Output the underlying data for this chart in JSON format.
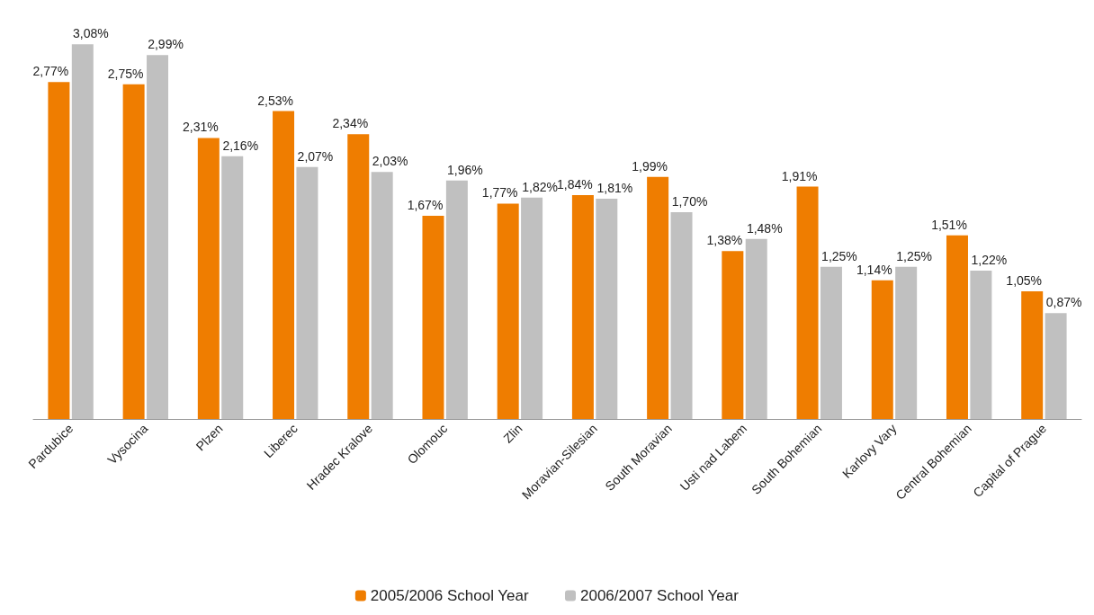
{
  "chart_data": {
    "type": "bar",
    "categories": [
      "Pardubice",
      "Vysocina",
      "Plzen",
      "Liberec",
      "Hradec Kralove",
      "Olomouc",
      "Zlin",
      "Moravian-Silesian",
      "South Moravian",
      "Usti nad Labem",
      "South Bohemian",
      "Karlovy Vary",
      "Central Bohemian",
      "Capital of Prague"
    ],
    "series": [
      {
        "name": "2005/2006 School Year",
        "color": "#ef7d00",
        "values": [
          2.77,
          2.75,
          2.31,
          2.53,
          2.34,
          1.67,
          1.77,
          1.84,
          1.99,
          1.38,
          1.91,
          1.14,
          1.51,
          1.05
        ],
        "value_labels": [
          "2,77%",
          "2,75%",
          "2,31%",
          "2,53%",
          "2,34%",
          "1,67%",
          "1,77%",
          "1,84%",
          "1,99%",
          "1,38%",
          "1,91%",
          "1,14%",
          "1,51%",
          "1,05%"
        ]
      },
      {
        "name": "2006/2007 School Year",
        "color": "#c0c0c0",
        "values": [
          3.08,
          2.99,
          2.16,
          2.07,
          2.03,
          1.96,
          1.82,
          1.81,
          1.7,
          1.48,
          1.25,
          1.25,
          1.22,
          0.87
        ],
        "value_labels": [
          "3,08%",
          "2,99%",
          "2,16%",
          "2,07%",
          "2,03%",
          "1,96%",
          "1,82%",
          "1,81%",
          "1,70%",
          "1,48%",
          "1,25%",
          "1,25%",
          "1,22%",
          "0,87%"
        ]
      }
    ],
    "legend": "bottom"
  }
}
